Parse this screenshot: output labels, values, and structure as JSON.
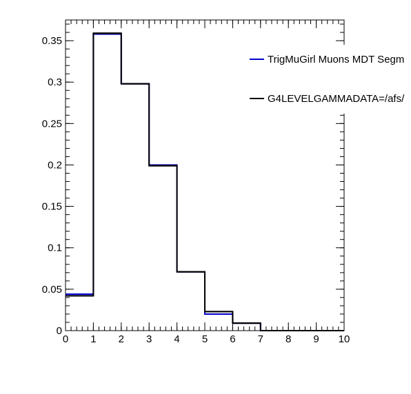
{
  "chart_data": {
    "type": "step-histogram",
    "title": "",
    "xlabel": "",
    "ylabel": "",
    "xlim": [
      0,
      10
    ],
    "ylim": [
      0,
      0.375
    ],
    "x_ticks": [
      0,
      1,
      2,
      3,
      4,
      5,
      6,
      7,
      8,
      9,
      10
    ],
    "x_tick_labels": [
      "0",
      "1",
      "2",
      "3",
      "4",
      "5",
      "6",
      "7",
      "8",
      "9",
      "10"
    ],
    "y_ticks": [
      0,
      0.05,
      0.1,
      0.15,
      0.2,
      0.25,
      0.3,
      0.35
    ],
    "y_tick_labels": [
      "0",
      "0.05",
      "0.1",
      "0.15",
      "0.2",
      "0.25",
      "0.3",
      "0.35"
    ],
    "bin_edges": [
      0,
      1,
      2,
      3,
      4,
      5,
      6,
      7,
      8,
      9,
      10
    ],
    "legend_placement": "top-right",
    "grid": false,
    "series": [
      {
        "name": "TrigMuGirl Muons MDT Segm",
        "color": "#0000cc",
        "values": [
          0.044,
          0.358,
          0.298,
          0.2,
          0.071,
          0.02,
          0.009,
          0.0,
          0.0,
          0.0
        ]
      },
      {
        "name": "G4LEVELGAMMADATA=/afs/",
        "color": "#000000",
        "values": [
          0.042,
          0.359,
          0.298,
          0.199,
          0.071,
          0.023,
          0.009,
          0.0,
          0.0,
          0.0
        ]
      }
    ]
  }
}
